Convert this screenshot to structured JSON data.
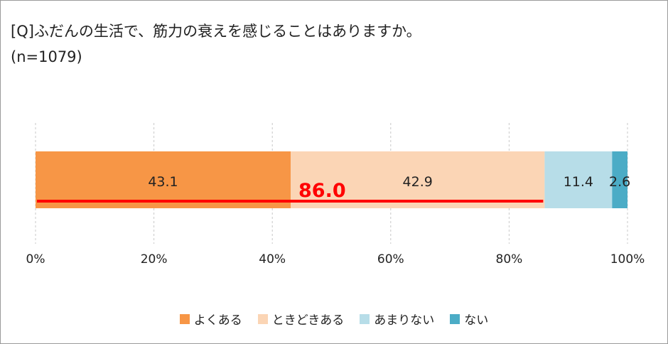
{
  "title_line1": "[Q]ふだんの生活で、筋力の衰えを感じることはありますか。",
  "title_line2": "(n=1079)",
  "chart_data": {
    "type": "bar",
    "orientation": "horizontal",
    "stacked": true,
    "percent_stacked": true,
    "xlim": [
      0,
      100
    ],
    "xticks": [
      0,
      20,
      40,
      60,
      80,
      100
    ],
    "xtick_labels": [
      "0%",
      "20%",
      "40%",
      "60%",
      "80%",
      "100%"
    ],
    "grid": "vertical dashed",
    "legend_position": "bottom",
    "series": [
      {
        "name": "よくある",
        "values": [
          43.1
        ],
        "label": "43.1",
        "color": "#f79646"
      },
      {
        "name": "ときどきある",
        "values": [
          42.9
        ],
        "label": "42.9",
        "color": "#fbd5b5"
      },
      {
        "name": "あまりない",
        "values": [
          11.4
        ],
        "label": "11.4",
        "color": "#b7dde8"
      },
      {
        "name": "ない",
        "values": [
          2.6
        ],
        "label": "2.6",
        "color": "#4bacc6"
      }
    ],
    "annotation": {
      "label": "86.0",
      "value": 86.0,
      "from": 0,
      "to": 86.0,
      "color": "#ff0000"
    }
  }
}
